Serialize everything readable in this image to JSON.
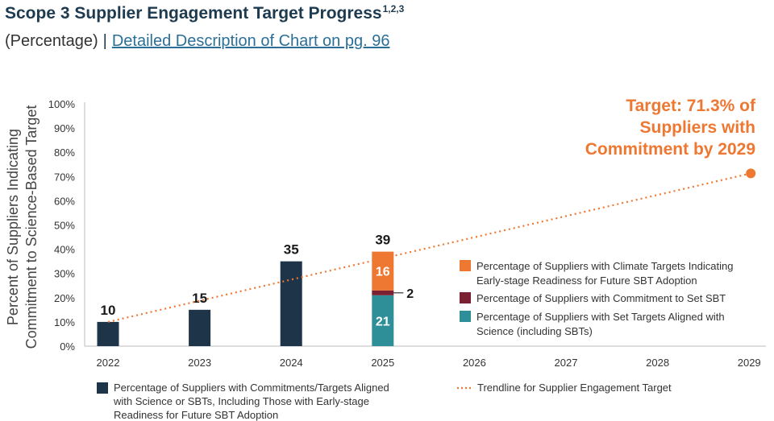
{
  "header": {
    "title": "Scope 3 Supplier Engagement Target Progress",
    "title_sup": "1,2,3",
    "subtitle_unit": "(Percentage)",
    "separator": "|",
    "detail_link": "Detailed Description of Chart on pg. 96"
  },
  "colors": {
    "navy": "#1e3448",
    "teal": "#2f8f98",
    "maroon": "#7b1f33",
    "orange": "#ee7832",
    "title": "#1d3a4f"
  },
  "chart_data": {
    "type": "bar",
    "ylabel_lines": [
      "Percent of Suppliers Indicating",
      "Commitment to Science-Based Target"
    ],
    "ylim": [
      0,
      100
    ],
    "y_ticks": [
      "0%",
      "10%",
      "20%",
      "30%",
      "40%",
      "50%",
      "60%",
      "70%",
      "80%",
      "90%",
      "100%"
    ],
    "categories": [
      "2022",
      "2023",
      "2024",
      "2025",
      "2026",
      "2027",
      "2028",
      "2029"
    ],
    "total_series": {
      "name": "Percentage of Suppliers with Commitments/Targets Aligned with Science or SBTs, Including Those with Early-stage Readiness for Future SBT Adoption",
      "name_lines": [
        "Percentage of Suppliers with Commitments/Targets Aligned",
        "with Science or SBTs, Including Those with Early-stage",
        "Readiness for Future SBT Adoption"
      ],
      "values": [
        10,
        15,
        35,
        null,
        null,
        null,
        null,
        null
      ],
      "labels": [
        "10",
        "15",
        "35"
      ]
    },
    "stacked_2025": {
      "category": "2025",
      "total_label": "39",
      "segments": [
        {
          "name": "Percentage of Suppliers with Set Targets Aligned with Science (including SBTs)",
          "name_lines": [
            "Percentage of Suppliers with Set Targets Aligned with",
            "Science (including SBTs)"
          ],
          "value": 21,
          "label": "21",
          "color": "#2f8f98"
        },
        {
          "name": "Percentage of Suppliers with Commitment to Set SBT",
          "name_lines": [
            "Percentage of Suppliers with Commitment to Set SBT"
          ],
          "value": 2,
          "label": "2",
          "color": "#7b1f33"
        },
        {
          "name": "Percentage of Suppliers with Climate Targets Indicating Early-stage Readiness for Future SBT Adoption",
          "name_lines": [
            "Percentage of Suppliers with Climate Targets Indicating",
            "Early-stage Readiness for Future SBT Adoption"
          ],
          "value": 16,
          "label": "16",
          "color": "#ee7832"
        }
      ]
    },
    "trendline": {
      "name": "Trendline for Supplier Engagement Target",
      "from": {
        "x": "2022",
        "y": 10
      },
      "to": {
        "x": "2029",
        "y": 71.3
      }
    },
    "target_annotation_lines": [
      "Target: 71.3% of",
      "Suppliers with",
      "Commitment by 2029"
    ],
    "grid": false,
    "legend_placement": "bottom and right"
  }
}
